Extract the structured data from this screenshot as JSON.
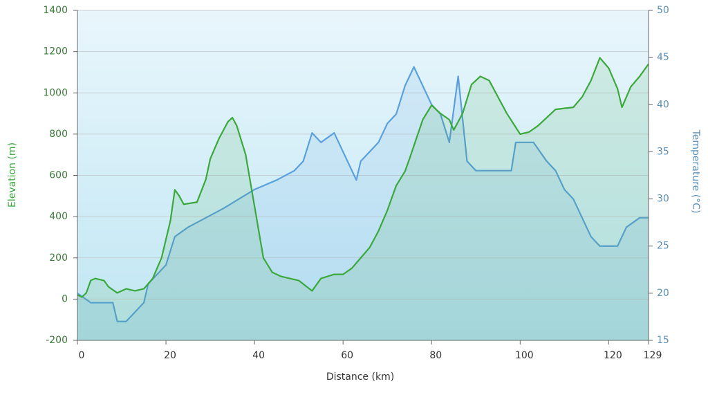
{
  "chart_data": {
    "type": "line",
    "xlabel": "Distance (km)",
    "ylabel": "Elevation (m)",
    "y2label": "Temperature (°C)",
    "xlim": [
      0,
      129
    ],
    "xticks": [
      0,
      20,
      40,
      60,
      80,
      100,
      120,
      129
    ],
    "ylim": [
      -200,
      1400
    ],
    "yticks": [
      -200,
      0,
      200,
      400,
      600,
      800,
      1000,
      1200,
      1400
    ],
    "y2lim": [
      15,
      50
    ],
    "y2ticks": [
      15,
      20,
      25,
      30,
      35,
      40,
      45,
      50
    ],
    "grid": true,
    "series": [
      {
        "name": "Elevation",
        "color": "#3aa83a",
        "axis": "y",
        "x": [
          0,
          1,
          2,
          3,
          4,
          6,
          7,
          9,
          11,
          13,
          15,
          17,
          19,
          21,
          22,
          23,
          24,
          27,
          29,
          30,
          32,
          34,
          35,
          36,
          38,
          40,
          42,
          44,
          46,
          50,
          53,
          55,
          58,
          60,
          62,
          64,
          66,
          68,
          70,
          72,
          74,
          75,
          78,
          80,
          82,
          84,
          85,
          87,
          89,
          91,
          93,
          95,
          97,
          100,
          102,
          104,
          106,
          108,
          112,
          114,
          116,
          118,
          120,
          122,
          123,
          125,
          127,
          129
        ],
        "values": [
          20,
          10,
          30,
          90,
          100,
          90,
          60,
          30,
          50,
          40,
          50,
          100,
          200,
          380,
          530,
          500,
          460,
          470,
          580,
          680,
          780,
          860,
          880,
          840,
          700,
          450,
          200,
          130,
          110,
          90,
          40,
          100,
          120,
          120,
          150,
          200,
          250,
          330,
          430,
          550,
          620,
          680,
          870,
          940,
          900,
          870,
          820,
          900,
          1040,
          1080,
          1060,
          980,
          900,
          800,
          810,
          840,
          880,
          920,
          930,
          980,
          1060,
          1170,
          1120,
          1020,
          930,
          1030,
          1080,
          1140
        ]
      },
      {
        "name": "Temperature",
        "color": "#5aa0dc",
        "axis": "y2",
        "x": [
          0,
          3,
          8,
          9,
          11,
          15,
          16,
          18,
          20,
          22,
          25,
          29,
          33,
          40,
          45,
          49,
          51,
          53,
          55,
          58,
          60,
          63,
          64,
          66,
          68,
          70,
          72,
          74,
          76,
          78,
          80,
          82,
          84,
          86,
          88,
          90,
          92,
          95,
          98,
          99,
          103,
          106,
          108,
          110,
          112,
          114,
          116,
          118,
          122,
          124,
          127,
          129
        ],
        "values": [
          20,
          19,
          19,
          17,
          17,
          19,
          21,
          22,
          23,
          26,
          27,
          28,
          29,
          31,
          32,
          33,
          34,
          37,
          36,
          37,
          35,
          32,
          34,
          35,
          36,
          38,
          39,
          42,
          44,
          42,
          40,
          39,
          36,
          43,
          34,
          33,
          33,
          33,
          33,
          36,
          36,
          34,
          33,
          31,
          30,
          28,
          26,
          25,
          25,
          27,
          28,
          28
        ]
      }
    ]
  }
}
